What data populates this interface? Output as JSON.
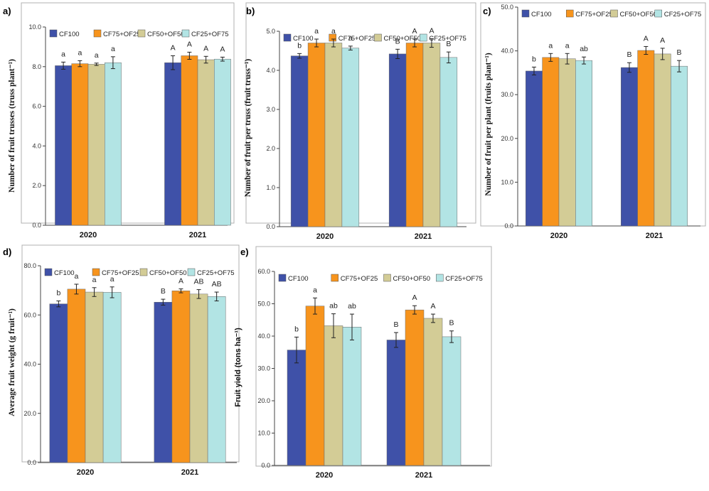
{
  "series_names": [
    "CF100",
    "CF75+OF25",
    "CF50+OF50",
    "CF25+OF75"
  ],
  "colors": [
    "#3f51a8",
    "#f7941d",
    "#d3cc96",
    "#b2e4e4"
  ],
  "chart_data": [
    {
      "panel": "a)",
      "type": "bar",
      "ylabel": "Number of fruit trusses (truss plant⁻¹)",
      "categories": [
        "2020",
        "2021"
      ],
      "ylim": [
        0,
        10
      ],
      "yticks": [
        "0.0",
        "2.0",
        "4.0",
        "6.0",
        "8.0",
        "10.0"
      ],
      "series": [
        {
          "name": "CF100",
          "values": [
            8.05,
            8.2
          ],
          "errors": [
            0.18,
            0.35
          ],
          "letters": [
            "a",
            "A"
          ]
        },
        {
          "name": "CF75+OF25",
          "values": [
            8.15,
            8.55
          ],
          "errors": [
            0.15,
            0.18
          ],
          "letters": [
            "a",
            "A"
          ]
        },
        {
          "name": "CF50+OF50",
          "values": [
            8.12,
            8.35
          ],
          "errors": [
            0.06,
            0.17
          ],
          "letters": [
            "a",
            "A"
          ]
        },
        {
          "name": "CF25+OF75",
          "values": [
            8.2,
            8.38
          ],
          "errors": [
            0.3,
            0.1
          ],
          "letters": [
            "a",
            "A"
          ]
        }
      ]
    },
    {
      "panel": "b)",
      "type": "bar",
      "ylabel": "Number of fruit per truss (fruit truss⁻¹)",
      "categories": [
        "2020",
        "2021"
      ],
      "ylim": [
        0,
        5
      ],
      "yticks": [
        "0.0",
        "1.0",
        "2.0",
        "3.0",
        "4.0",
        "5.0"
      ],
      "series": [
        {
          "name": "CF100",
          "values": [
            4.37,
            4.42
          ],
          "errors": [
            0.06,
            0.12
          ],
          "letters": [
            "b",
            "B"
          ]
        },
        {
          "name": "CF75+OF25",
          "values": [
            4.7,
            4.7
          ],
          "errors": [
            0.1,
            0.1
          ],
          "letters": [
            "a",
            "A"
          ]
        },
        {
          "name": "CF50+OF50",
          "values": [
            4.7,
            4.7
          ],
          "errors": [
            0.1,
            0.11
          ],
          "letters": [
            "a",
            "A"
          ]
        },
        {
          "name": "CF25+OF75",
          "values": [
            4.57,
            4.33
          ],
          "errors": [
            0.05,
            0.14
          ],
          "letters": [
            "a",
            "B"
          ]
        }
      ]
    },
    {
      "panel": "c)",
      "type": "bar",
      "ylabel": "Number of fruit per plant (fruits plant⁻¹)",
      "categories": [
        "2020",
        "2021"
      ],
      "ylim": [
        0,
        50
      ],
      "yticks": [
        "0.0",
        "10.0",
        "20.0",
        "30.0",
        "40.0",
        "50.0"
      ],
      "series": [
        {
          "name": "CF100",
          "values": [
            35.4,
            36.2
          ],
          "errors": [
            0.9,
            1.1
          ],
          "letters": [
            "b",
            "B"
          ]
        },
        {
          "name": "CF75+OF25",
          "values": [
            38.5,
            40.1
          ],
          "errors": [
            0.9,
            0.9
          ],
          "letters": [
            "a",
            "A"
          ]
        },
        {
          "name": "CF50+OF50",
          "values": [
            38.2,
            39.3
          ],
          "errors": [
            1.2,
            1.3
          ],
          "letters": [
            "a",
            "A"
          ]
        },
        {
          "name": "CF25+OF75",
          "values": [
            37.8,
            36.5
          ],
          "errors": [
            0.8,
            1.3
          ],
          "letters": [
            "ab",
            "B"
          ]
        }
      ]
    },
    {
      "panel": "d)",
      "type": "bar",
      "ylabel": "Average fruit weight (g fruit⁻¹)",
      "categories": [
        "2020",
        "2021"
      ],
      "ylim": [
        0,
        80
      ],
      "yticks": [
        "0.0",
        "20.0",
        "40.0",
        "60.0",
        "80.0"
      ],
      "series": [
        {
          "name": "CF100",
          "values": [
            64.5,
            65.2
          ],
          "errors": [
            1.2,
            1.2
          ],
          "letters": [
            "b",
            "B"
          ]
        },
        {
          "name": "CF75+OF25",
          "values": [
            70.5,
            69.8
          ],
          "errors": [
            2.0,
            0.8
          ],
          "letters": [
            "a",
            "A"
          ]
        },
        {
          "name": "CF50+OF50",
          "values": [
            69.3,
            68.5
          ],
          "errors": [
            1.8,
            1.8
          ],
          "letters": [
            "a",
            "AB"
          ]
        },
        {
          "name": "CF25+OF75",
          "values": [
            69.2,
            67.5
          ],
          "errors": [
            2.2,
            1.8
          ],
          "letters": [
            "a",
            "AB"
          ]
        }
      ]
    },
    {
      "panel": "e)",
      "type": "bar",
      "ylabel": "Fruit yield (tons ha⁻¹)",
      "categories": [
        "2020",
        "2021"
      ],
      "ylim": [
        0,
        60
      ],
      "yticks": [
        "0.0",
        "10.0",
        "20.0",
        "30.0",
        "40.0",
        "50.0",
        "60.0"
      ],
      "series": [
        {
          "name": "CF100",
          "values": [
            35.7,
            38.8
          ],
          "errors": [
            4.0,
            2.3
          ],
          "letters": [
            "b",
            "B"
          ]
        },
        {
          "name": "CF75+OF25",
          "values": [
            49.3,
            48.1
          ],
          "errors": [
            2.5,
            1.3
          ],
          "letters": [
            "a",
            "A"
          ]
        },
        {
          "name": "CF50+OF50",
          "values": [
            43.2,
            45.5
          ],
          "errors": [
            3.7,
            1.3
          ],
          "letters": [
            "ab",
            "A"
          ]
        },
        {
          "name": "CF25+OF75",
          "values": [
            42.8,
            39.8
          ],
          "errors": [
            4.0,
            1.8
          ],
          "letters": [
            "ab",
            "B"
          ]
        }
      ]
    }
  ]
}
